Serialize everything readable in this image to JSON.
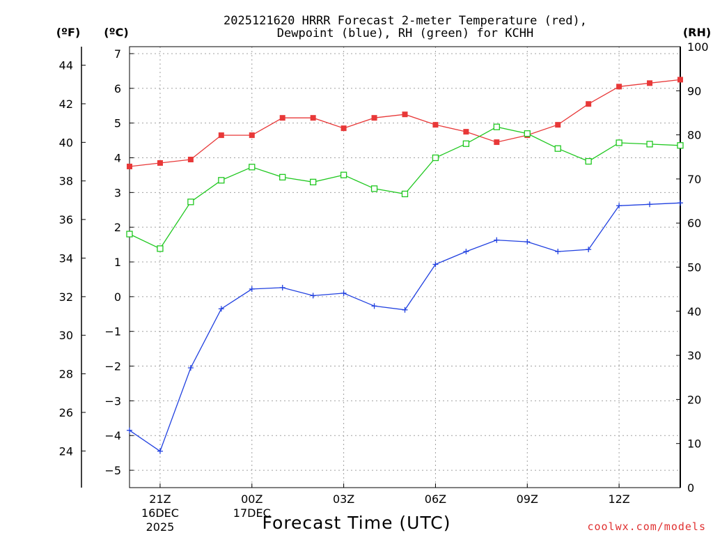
{
  "title": {
    "line1": "2025121620 HRRR Forecast 2-meter Temperature (red),",
    "line2": "Dewpoint (blue), RH (green) for KCHH"
  },
  "units": {
    "left_outer": "(ºF)",
    "left_inner": "(ºC)",
    "right": "(RH)"
  },
  "xlabel": "Forecast Time (UTC)",
  "credit": {
    "text": "coolwx.com/models",
    "color": "#e03030"
  },
  "x_ticks": [
    {
      "hour": 1,
      "label": "21Z",
      "sub1": "16DEC",
      "sub2": "2025"
    },
    {
      "hour": 4,
      "label": "00Z",
      "sub1": "17DEC",
      "sub2": ""
    },
    {
      "hour": 7,
      "label": "03Z",
      "sub1": "",
      "sub2": ""
    },
    {
      "hour": 10,
      "label": "06Z",
      "sub1": "",
      "sub2": ""
    },
    {
      "hour": 13,
      "label": "09Z",
      "sub1": "",
      "sub2": ""
    },
    {
      "hour": 16,
      "label": "12Z",
      "sub1": "",
      "sub2": ""
    }
  ],
  "chart_data": {
    "type": "line",
    "title": "2025121620 HRRR Forecast 2-meter Temperature (red), Dewpoint (blue), RH (green) for KCHH",
    "xlabel": "Forecast Time (UTC)",
    "x": [
      0,
      1,
      2,
      3,
      4,
      5,
      6,
      7,
      8,
      9,
      10,
      11,
      12,
      13,
      14,
      15,
      16,
      17,
      18
    ],
    "xlim": [
      0,
      18
    ],
    "y_celsius": {
      "label": "(ºC)",
      "ylim": [
        -5.5,
        7.2
      ],
      "ticks": [
        -5,
        -4,
        -3,
        -2,
        -1,
        0,
        1,
        2,
        3,
        4,
        5,
        6,
        7
      ]
    },
    "y_fahrenheit": {
      "label": "(ºF)",
      "ticks": [
        24,
        26,
        28,
        30,
        32,
        34,
        36,
        38,
        40,
        42,
        44
      ]
    },
    "y_rh": {
      "label": "(RH)",
      "ylim": [
        0,
        100
      ],
      "ticks": [
        0,
        10,
        20,
        30,
        40,
        50,
        60,
        70,
        80,
        90,
        100
      ]
    },
    "series": [
      {
        "name": "Temperature",
        "color": "#e83838",
        "marker": "filled-square",
        "axis": "celsius",
        "values": [
          3.75,
          3.85,
          3.95,
          4.65,
          4.65,
          5.15,
          5.15,
          4.85,
          5.15,
          5.25,
          4.95,
          4.75,
          4.45,
          4.65,
          4.95,
          5.55,
          6.05,
          6.15,
          6.25
        ]
      },
      {
        "name": "Dewpoint",
        "color": "#2040e0",
        "marker": "plus",
        "axis": "celsius",
        "values": [
          -3.85,
          -4.45,
          -2.05,
          -0.35,
          0.22,
          0.26,
          0.03,
          0.1,
          -0.27,
          -0.38,
          0.93,
          1.3,
          1.63,
          1.58,
          1.3,
          1.36,
          2.62,
          2.66,
          2.7
        ]
      },
      {
        "name": "RH",
        "color": "#20c820",
        "marker": "open-square",
        "axis": "rh",
        "values": [
          57.5,
          54.2,
          64.8,
          69.7,
          72.7,
          70.4,
          69.3,
          70.9,
          67.8,
          66.6,
          74.8,
          78.0,
          81.8,
          80.3,
          76.9,
          74.0,
          78.2,
          77.9,
          77.6
        ]
      }
    ]
  }
}
